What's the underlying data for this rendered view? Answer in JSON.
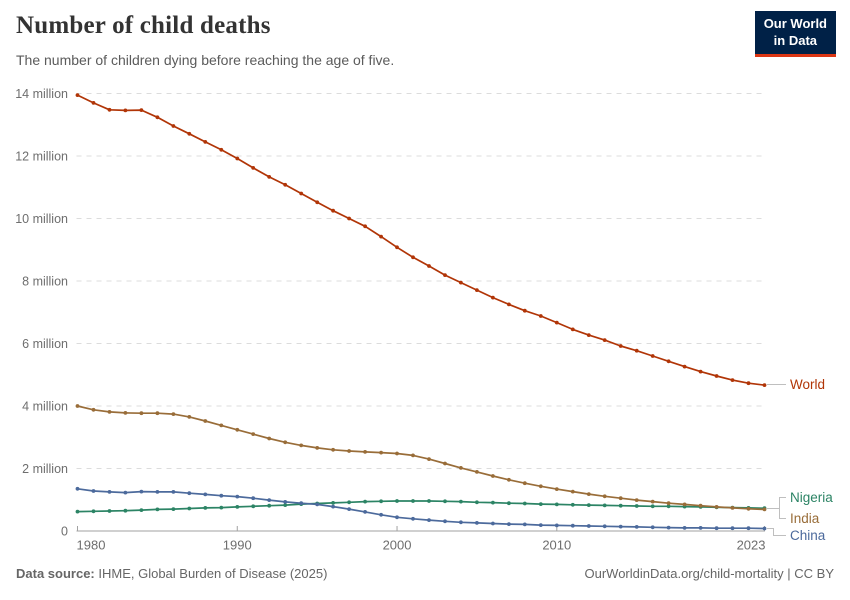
{
  "header": {
    "title": "Number of child deaths",
    "subtitle": "The number of children dying before reaching the age of five.",
    "logo": {
      "line1": "Our World",
      "line2": "in Data",
      "bg_color": "#002147",
      "stripe_color": "#dc3614"
    }
  },
  "footer": {
    "source_label": "Data source:",
    "source_text": " IHME, Global Burden of Disease (2025)",
    "right_text": "OurWorldinData.org/child-mortality | CC BY"
  },
  "chart_data": {
    "type": "line",
    "title": "Number of child deaths",
    "xlabel": "",
    "ylabel": "",
    "unit": "million",
    "grid": true,
    "ylim": [
      0,
      14
    ],
    "x_ticks": [
      1980,
      1990,
      2000,
      2010,
      2023
    ],
    "y_ticks": [
      {
        "value": 0,
        "label": "0"
      },
      {
        "value": 2,
        "label": "2 million"
      },
      {
        "value": 4,
        "label": "4 million"
      },
      {
        "value": 6,
        "label": "6 million"
      },
      {
        "value": 8,
        "label": "8 million"
      },
      {
        "value": 10,
        "label": "10 million"
      },
      {
        "value": 12,
        "label": "12 million"
      },
      {
        "value": 14,
        "label": "14 million"
      }
    ],
    "x": [
      1980,
      1981,
      1982,
      1983,
      1984,
      1985,
      1986,
      1987,
      1988,
      1989,
      1990,
      1991,
      1992,
      1993,
      1994,
      1995,
      1996,
      1997,
      1998,
      1999,
      2000,
      2001,
      2002,
      2003,
      2004,
      2005,
      2006,
      2007,
      2008,
      2009,
      2010,
      2011,
      2012,
      2013,
      2014,
      2015,
      2016,
      2017,
      2018,
      2019,
      2020,
      2021,
      2022,
      2023
    ],
    "series": [
      {
        "name": "World",
        "color": "#b13507",
        "values": [
          13.95,
          13.7,
          13.48,
          13.46,
          13.47,
          13.24,
          12.96,
          12.71,
          12.45,
          12.2,
          11.92,
          11.62,
          11.33,
          11.08,
          10.8,
          10.52,
          10.25,
          10.0,
          9.75,
          9.42,
          9.08,
          8.76,
          8.48,
          8.19,
          7.95,
          7.71,
          7.47,
          7.25,
          7.05,
          6.88,
          6.67,
          6.45,
          6.27,
          6.11,
          5.92,
          5.77,
          5.6,
          5.43,
          5.26,
          5.1,
          4.96,
          4.83,
          4.73,
          4.67
        ]
      },
      {
        "name": "Nigeria",
        "color": "#2c8465",
        "values": [
          0.62,
          0.63,
          0.64,
          0.65,
          0.67,
          0.69,
          0.7,
          0.72,
          0.74,
          0.75,
          0.77,
          0.79,
          0.81,
          0.83,
          0.86,
          0.88,
          0.9,
          0.92,
          0.94,
          0.95,
          0.96,
          0.96,
          0.96,
          0.95,
          0.94,
          0.92,
          0.91,
          0.89,
          0.88,
          0.86,
          0.85,
          0.84,
          0.83,
          0.82,
          0.81,
          0.8,
          0.79,
          0.79,
          0.78,
          0.77,
          0.76,
          0.75,
          0.74,
          0.73
        ]
      },
      {
        "name": "India",
        "color": "#996d39",
        "values": [
          4.0,
          3.88,
          3.81,
          3.78,
          3.77,
          3.77,
          3.74,
          3.65,
          3.52,
          3.38,
          3.24,
          3.1,
          2.96,
          2.84,
          2.74,
          2.66,
          2.6,
          2.56,
          2.53,
          2.51,
          2.48,
          2.42,
          2.3,
          2.16,
          2.02,
          1.89,
          1.76,
          1.64,
          1.53,
          1.43,
          1.34,
          1.26,
          1.18,
          1.11,
          1.05,
          0.99,
          0.94,
          0.89,
          0.85,
          0.81,
          0.77,
          0.74,
          0.71,
          0.69
        ]
      },
      {
        "name": "China",
        "color": "#4c6a9c",
        "values": [
          1.35,
          1.28,
          1.25,
          1.23,
          1.26,
          1.25,
          1.25,
          1.21,
          1.17,
          1.13,
          1.1,
          1.05,
          0.99,
          0.93,
          0.89,
          0.85,
          0.78,
          0.7,
          0.61,
          0.52,
          0.44,
          0.39,
          0.35,
          0.31,
          0.28,
          0.26,
          0.24,
          0.22,
          0.21,
          0.19,
          0.18,
          0.17,
          0.16,
          0.15,
          0.14,
          0.13,
          0.12,
          0.11,
          0.1,
          0.1,
          0.09,
          0.09,
          0.09,
          0.08
        ]
      }
    ],
    "legend_position": "right-edge-labels"
  }
}
